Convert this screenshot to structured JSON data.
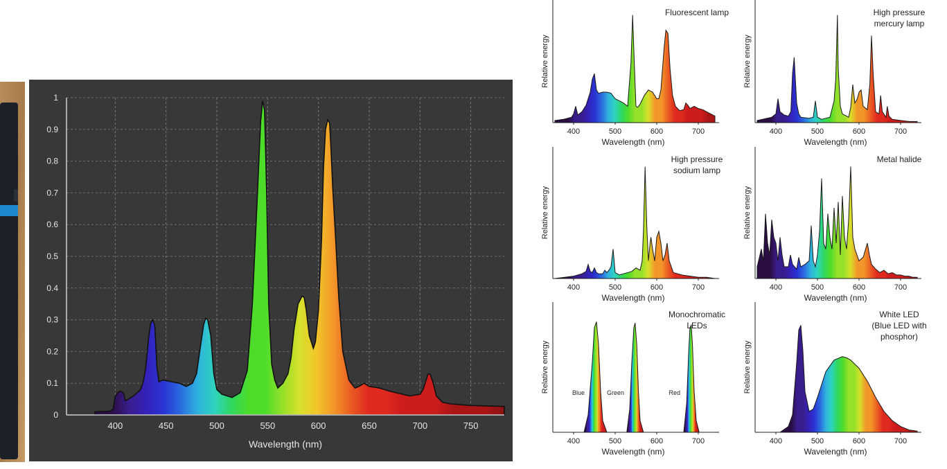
{
  "main_chart": {
    "xlabel": "Wavelength (nm)",
    "x_ticks": [
      400,
      450,
      500,
      550,
      600,
      650,
      700,
      750
    ],
    "y_ticks": [
      0,
      0.1,
      0.2,
      0.3,
      0.4,
      0.5,
      0.6,
      0.7,
      0.8,
      0.9,
      1
    ],
    "y_tick_labels": [
      "0",
      "0.1",
      "0.2",
      "0.3",
      "0.4",
      "0.5",
      "0.6",
      "0.7",
      "0.8",
      "0.9",
      "1"
    ]
  },
  "panels": {
    "ylabel": "Relative energy",
    "xlabel": "Wavelength (nm)",
    "x_ticks": [
      400,
      500,
      600,
      700
    ],
    "items": [
      {
        "title_lines": [
          "Fluorescent lamp"
        ]
      },
      {
        "title_lines": [
          "High pressure",
          "mercury lamp"
        ]
      },
      {
        "title_lines": [
          "High pressure",
          "sodium lamp"
        ]
      },
      {
        "title_lines": [
          "Metal halide"
        ]
      },
      {
        "title_lines": [
          "Monochromatic",
          "LEDs"
        ],
        "peak_labels": [
          "Blue",
          "Green",
          "Red"
        ]
      },
      {
        "title_lines": [
          "White LED",
          "(Blue LED with",
          "phosphor)"
        ]
      }
    ]
  },
  "chart_data": [
    {
      "type": "area",
      "title": "",
      "xlabel": "Wavelength (nm)",
      "ylabel": "",
      "xlim": [
        352,
        783
      ],
      "ylim": [
        0,
        1
      ],
      "grid": true,
      "x": [
        380,
        395,
        398,
        400,
        403,
        405,
        408,
        410,
        413,
        418,
        425,
        428,
        430,
        433,
        435,
        437,
        439,
        441,
        443,
        447,
        455,
        463,
        470,
        476,
        480,
        484,
        487,
        489,
        491,
        494,
        497,
        500,
        505,
        515,
        523,
        530,
        535,
        540,
        543,
        545,
        547,
        549,
        551,
        554,
        557,
        560,
        565,
        570,
        573,
        576,
        580,
        584,
        586,
        588,
        591,
        595,
        597,
        600,
        603,
        605,
        607,
        609,
        611,
        612,
        614,
        617,
        620,
        624,
        630,
        636,
        640,
        645,
        650,
        660,
        670,
        690,
        700,
        703,
        705,
        708,
        710,
        713,
        716,
        722,
        730,
        750,
        770,
        783
      ],
      "y": [
        0.01,
        0.012,
        0.02,
        0.06,
        0.072,
        0.075,
        0.07,
        0.045,
        0.05,
        0.06,
        0.08,
        0.11,
        0.15,
        0.25,
        0.29,
        0.3,
        0.28,
        0.15,
        0.105,
        0.11,
        0.105,
        0.1,
        0.09,
        0.1,
        0.13,
        0.22,
        0.285,
        0.305,
        0.3,
        0.25,
        0.13,
        0.08,
        0.065,
        0.055,
        0.07,
        0.14,
        0.35,
        0.7,
        0.92,
        0.99,
        0.96,
        0.7,
        0.35,
        0.16,
        0.11,
        0.085,
        0.1,
        0.13,
        0.18,
        0.27,
        0.35,
        0.375,
        0.37,
        0.33,
        0.25,
        0.21,
        0.23,
        0.33,
        0.55,
        0.78,
        0.9,
        0.93,
        0.92,
        0.86,
        0.72,
        0.55,
        0.37,
        0.2,
        0.11,
        0.085,
        0.09,
        0.1,
        0.09,
        0.085,
        0.075,
        0.06,
        0.065,
        0.08,
        0.1,
        0.13,
        0.128,
        0.1,
        0.06,
        0.04,
        0.035,
        0.03,
        0.028,
        0.027
      ]
    },
    {
      "type": "area",
      "title": "Fluorescent lamp",
      "xlabel": "Wavelength (nm)",
      "ylabel": "Relative energy",
      "xlim": [
        350,
        750
      ],
      "ylim": [
        0,
        1
      ],
      "x": [
        355,
        375,
        395,
        400,
        405,
        410,
        420,
        430,
        440,
        445,
        450,
        455,
        460,
        470,
        480,
        490,
        500,
        510,
        520,
        530,
        538,
        542,
        546,
        550,
        554,
        560,
        570,
        580,
        590,
        600,
        605,
        610,
        618,
        622,
        627,
        632,
        638,
        645,
        655,
        665,
        670,
        675,
        680,
        690,
        700,
        710,
        720,
        730,
        740
      ],
      "y": [
        0.02,
        0.03,
        0.05,
        0.08,
        0.15,
        0.07,
        0.1,
        0.16,
        0.28,
        0.4,
        0.45,
        0.3,
        0.27,
        0.28,
        0.28,
        0.27,
        0.22,
        0.2,
        0.18,
        0.15,
        0.55,
        0.99,
        0.55,
        0.15,
        0.14,
        0.17,
        0.25,
        0.3,
        0.28,
        0.22,
        0.22,
        0.3,
        0.7,
        0.85,
        0.82,
        0.5,
        0.25,
        0.15,
        0.11,
        0.12,
        0.18,
        0.16,
        0.13,
        0.15,
        0.13,
        0.12,
        0.1,
        0.08,
        0.06
      ]
    },
    {
      "type": "area",
      "title": "High pressure mercury lamp",
      "xlabel": "Wavelength (nm)",
      "ylabel": "Relative energy",
      "xlim": [
        350,
        750
      ],
      "ylim": [
        0,
        1
      ],
      "x": [
        355,
        390,
        400,
        405,
        410,
        420,
        430,
        436,
        440,
        444,
        450,
        455,
        460,
        480,
        490,
        495,
        500,
        510,
        520,
        530,
        540,
        544,
        548,
        550,
        555,
        560,
        570,
        575,
        580,
        585,
        590,
        596,
        600,
        605,
        610,
        620,
        626,
        630,
        634,
        640,
        648,
        652,
        656,
        665,
        668,
        672,
        680,
        700,
        720,
        740
      ],
      "y": [
        0.02,
        0.05,
        0.08,
        0.22,
        0.1,
        0.07,
        0.06,
        0.1,
        0.45,
        0.6,
        0.18,
        0.08,
        0.05,
        0.04,
        0.05,
        0.2,
        0.05,
        0.03,
        0.04,
        0.05,
        0.2,
        0.4,
        0.99,
        0.5,
        0.15,
        0.08,
        0.06,
        0.05,
        0.14,
        0.35,
        0.18,
        0.22,
        0.28,
        0.3,
        0.15,
        0.12,
        0.35,
        0.8,
        0.45,
        0.1,
        0.08,
        0.25,
        0.1,
        0.05,
        0.15,
        0.06,
        0.03,
        0.02,
        0.01,
        0.01
      ]
    },
    {
      "type": "area",
      "title": "High pressure sodium lamp",
      "xlabel": "Wavelength (nm)",
      "ylabel": "Relative energy",
      "xlim": [
        350,
        750
      ],
      "ylim": [
        0,
        1
      ],
      "x": [
        355,
        400,
        420,
        430,
        435,
        440,
        445,
        450,
        455,
        460,
        465,
        470,
        475,
        480,
        485,
        490,
        495,
        500,
        505,
        510,
        520,
        540,
        550,
        560,
        565,
        568,
        572,
        576,
        580,
        584,
        586,
        590,
        595,
        600,
        605,
        610,
        615,
        620,
        625,
        630,
        640,
        660,
        680,
        700,
        720,
        740
      ],
      "y": [
        0.0,
        0.02,
        0.04,
        0.06,
        0.12,
        0.06,
        0.05,
        0.09,
        0.05,
        0.04,
        0.04,
        0.04,
        0.07,
        0.05,
        0.07,
        0.1,
        0.25,
        0.05,
        0.04,
        0.03,
        0.04,
        0.06,
        0.09,
        0.07,
        0.15,
        0.4,
        0.95,
        0.45,
        0.15,
        0.3,
        0.35,
        0.25,
        0.15,
        0.35,
        0.4,
        0.3,
        0.15,
        0.2,
        0.3,
        0.15,
        0.05,
        0.03,
        0.02,
        0.01,
        0.01,
        0.0
      ]
    },
    {
      "type": "area",
      "title": "Metal halide",
      "xlabel": "Wavelength (nm)",
      "ylabel": "Relative energy",
      "xlim": [
        350,
        750
      ],
      "ylim": [
        0,
        1
      ],
      "x": [
        355,
        365,
        370,
        375,
        380,
        385,
        390,
        395,
        400,
        405,
        410,
        415,
        420,
        430,
        435,
        440,
        450,
        455,
        460,
        470,
        480,
        485,
        490,
        495,
        500,
        505,
        510,
        515,
        520,
        525,
        530,
        535,
        540,
        545,
        550,
        555,
        560,
        565,
        570,
        575,
        580,
        585,
        590,
        595,
        600,
        610,
        620,
        625,
        630,
        640,
        650,
        660,
        670,
        680,
        690,
        700,
        710,
        720,
        730,
        740
      ],
      "y": [
        0.1,
        0.25,
        0.15,
        0.55,
        0.3,
        0.2,
        0.5,
        0.35,
        0.3,
        0.15,
        0.35,
        0.2,
        0.1,
        0.1,
        0.2,
        0.12,
        0.08,
        0.18,
        0.1,
        0.12,
        0.15,
        0.45,
        0.15,
        0.1,
        0.2,
        0.4,
        0.85,
        0.3,
        0.25,
        0.55,
        0.35,
        0.25,
        0.6,
        0.3,
        0.65,
        0.2,
        0.7,
        0.35,
        0.25,
        0.5,
        0.95,
        0.35,
        0.25,
        0.2,
        0.15,
        0.18,
        0.3,
        0.2,
        0.12,
        0.08,
        0.05,
        0.07,
        0.04,
        0.05,
        0.03,
        0.03,
        0.02,
        0.02,
        0.01,
        0.01
      ]
    },
    {
      "type": "area",
      "title": "Monochromatic LEDs",
      "xlabel": "Wavelength (nm)",
      "ylabel": "Relative energy",
      "xlim": [
        350,
        750
      ],
      "ylim": [
        0,
        1
      ],
      "series": [
        {
          "name": "Blue",
          "x": [
            425,
            435,
            445,
            450,
            455,
            460,
            465,
            470,
            480
          ],
          "y": [
            0,
            0.15,
            0.6,
            0.9,
            0.95,
            0.75,
            0.35,
            0.1,
            0
          ]
        },
        {
          "name": "Green",
          "x": [
            528,
            535,
            540,
            545,
            548,
            552,
            556,
            560,
            568
          ],
          "y": [
            0,
            0.2,
            0.6,
            0.9,
            0.94,
            0.75,
            0.35,
            0.1,
            0
          ]
        },
        {
          "name": "Red",
          "x": [
            665,
            672,
            677,
            680,
            683,
            686,
            690,
            695,
            702
          ],
          "y": [
            0,
            0.25,
            0.7,
            0.9,
            0.92,
            0.75,
            0.35,
            0.1,
            0
          ]
        }
      ]
    },
    {
      "type": "area",
      "title": "White LED (Blue LED with phosphor)",
      "xlabel": "Wavelength (nm)",
      "ylabel": "Relative energy",
      "xlim": [
        350,
        750
      ],
      "ylim": [
        0,
        1
      ],
      "x": [
        410,
        430,
        440,
        450,
        455,
        460,
        465,
        470,
        480,
        490,
        500,
        520,
        540,
        560,
        570,
        580,
        600,
        620,
        640,
        660,
        680,
        700,
        720,
        740
      ],
      "y": [
        0,
        0.05,
        0.15,
        0.6,
        0.88,
        0.92,
        0.7,
        0.35,
        0.18,
        0.2,
        0.3,
        0.52,
        0.62,
        0.65,
        0.64,
        0.62,
        0.55,
        0.44,
        0.3,
        0.18,
        0.1,
        0.05,
        0.02,
        0.01
      ]
    }
  ]
}
